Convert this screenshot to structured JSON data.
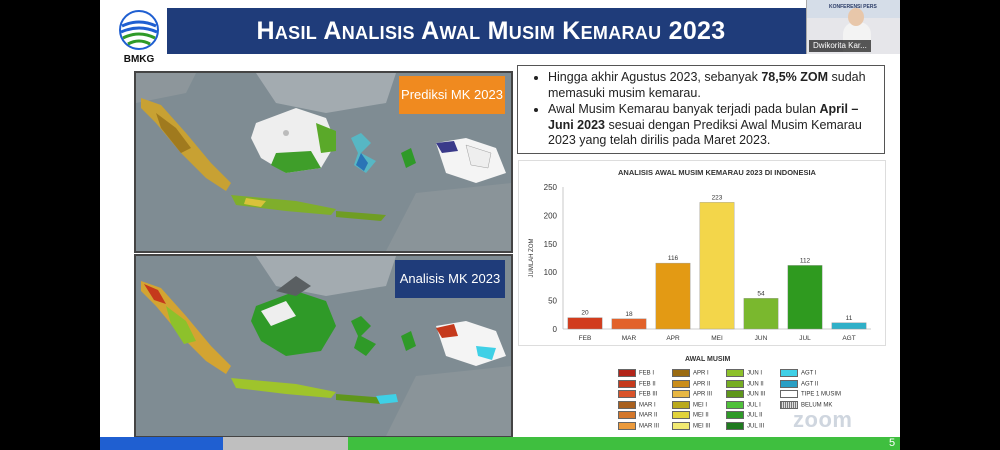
{
  "header": {
    "logo_text": "BMKG",
    "title": "Hasil Analisis Awal Musim Kemarau 2023"
  },
  "webcam": {
    "participant_name": "Dwikorita Kar...",
    "backdrop_caption": "KONFERENSI PERS"
  },
  "maps": {
    "top_label": "Prediksi MK 2023",
    "bottom_label": "Analisis MK 2023"
  },
  "bullets": {
    "item1_pre": "Hingga akhir Agustus 2023, sebanyak ",
    "item1_bold": "78,5% ZOM",
    "item1_post": " sudah memasuki musim kemarau.",
    "item2_pre": "Awal Musim Kemarau banyak terjadi pada bulan ",
    "item2_bold": "April – Juni 2023",
    "item2_post": " sesuai dengan Prediksi Awal Musim Kemarau 2023 yang telah dirilis pada Maret 2023."
  },
  "chart_data": {
    "type": "bar",
    "title": "ANALISIS AWAL MUSIM KEMARAU 2023 DI INDONESIA",
    "ylabel": "JUMLAH ZOM",
    "xlabel": "",
    "categories": [
      "FEB",
      "MAR",
      "APR",
      "MEI",
      "JUN",
      "JUL",
      "AGT"
    ],
    "values": [
      20,
      18,
      116,
      223,
      54,
      112,
      11
    ],
    "colors": [
      "#d13c1e",
      "#e2622a",
      "#e39a14",
      "#f3d64a",
      "#7ab82e",
      "#2f9a1f",
      "#2fb0c8"
    ],
    "ylim": [
      0,
      250
    ],
    "yticks": [
      0,
      50,
      100,
      150,
      200,
      250
    ],
    "grid": false
  },
  "legend": {
    "title": "AWAL MUSIM",
    "items": [
      {
        "label": "FEB I",
        "color": "#b2251a"
      },
      {
        "label": "FEB II",
        "color": "#c5391c"
      },
      {
        "label": "FEB III",
        "color": "#d9532a"
      },
      {
        "label": "MAR I",
        "color": "#a8601f"
      },
      {
        "label": "MAR II",
        "color": "#d4772b"
      },
      {
        "label": "MAR III",
        "color": "#eb9a3c"
      },
      {
        "label": "APR I",
        "color": "#9a6b12"
      },
      {
        "label": "APR II",
        "color": "#c98d1b"
      },
      {
        "label": "APR III",
        "color": "#e7b743"
      },
      {
        "label": "MEI I",
        "color": "#b9a91d"
      },
      {
        "label": "MEI II",
        "color": "#e1d23b"
      },
      {
        "label": "MEI III",
        "color": "#f2ea72"
      },
      {
        "label": "JUN I",
        "color": "#8dc12b"
      },
      {
        "label": "JUN II",
        "color": "#76ad22"
      },
      {
        "label": "JUN III",
        "color": "#5f961b"
      },
      {
        "label": "JUL I",
        "color": "#4fc03a"
      },
      {
        "label": "JUL II",
        "color": "#2f9a28"
      },
      {
        "label": "JUL III",
        "color": "#1f7a1f"
      },
      {
        "label": "AGT I",
        "color": "#3fd0e6"
      },
      {
        "label": "AGT II",
        "color": "#2a9fc4"
      },
      {
        "label": "TIPE 1 MUSIM",
        "color": "#ffffff"
      },
      {
        "label": "BELUM MK",
        "color": "#9a9a9a"
      }
    ]
  },
  "footer": {
    "page_number": "5",
    "zoom_watermark": "zoom"
  }
}
